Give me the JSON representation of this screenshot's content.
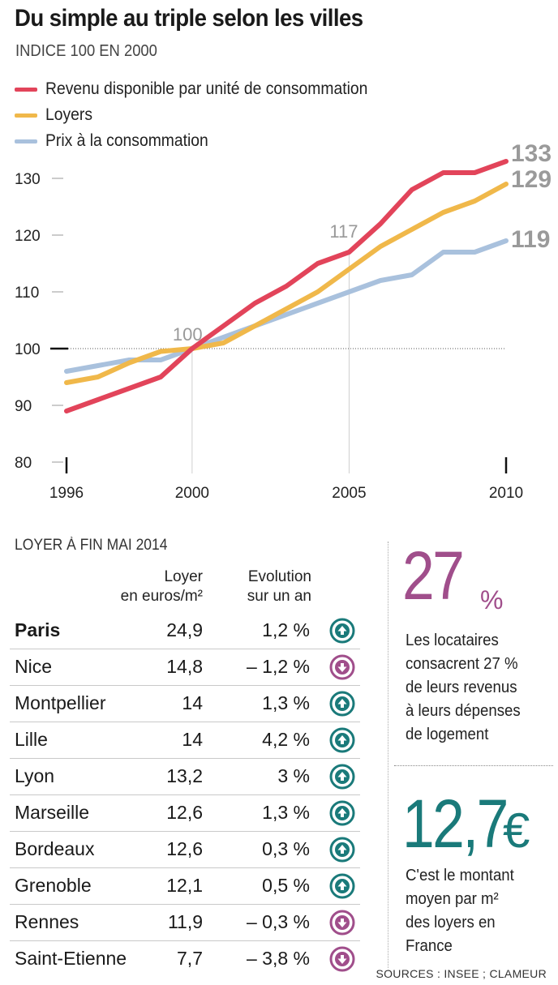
{
  "header": {
    "title": "Du simple au triple selon les villes",
    "subtitle": "INDICE 100 EN 2000"
  },
  "legend": [
    {
      "label": "Revenu disponible par unité de consommation",
      "color": "#e2445a"
    },
    {
      "label": "Loyers",
      "color": "#f0b84a"
    },
    {
      "label": "Prix à la consommation",
      "color": "#a9c1dd"
    }
  ],
  "chart_data": {
    "type": "line",
    "title": "Du simple au triple selon les villes",
    "subtitle": "INDICE 100 EN 2000",
    "xlabel": "",
    "ylabel": "",
    "x": [
      1996,
      1997,
      1998,
      1999,
      2000,
      2001,
      2002,
      2003,
      2004,
      2005,
      2006,
      2007,
      2008,
      2009,
      2010
    ],
    "xlim": [
      1996,
      2010
    ],
    "ylim": [
      80,
      130
    ],
    "yticks": [
      "80",
      "90",
      "100",
      "110",
      "120",
      "130"
    ],
    "xticks": [
      "1996",
      "2000",
      "2005",
      "2010"
    ],
    "grid": false,
    "reference_line": 100,
    "series": [
      {
        "name": "Revenu disponible par unité de consommation",
        "color": "#e2445a",
        "values": [
          89,
          91,
          93,
          95,
          100,
          104,
          108,
          111,
          115,
          117,
          122,
          128,
          131,
          131,
          133
        ]
      },
      {
        "name": "Loyers",
        "color": "#f0b84a",
        "values": [
          94,
          95,
          97.5,
          99.5,
          100,
          101,
          104,
          107,
          110,
          114,
          118,
          121,
          124,
          126,
          129
        ]
      },
      {
        "name": "Prix à la consommation",
        "color": "#a9c1dd",
        "values": [
          96,
          97,
          98,
          98,
          100,
          102,
          104,
          106,
          108,
          110,
          112,
          113,
          117,
          117,
          119
        ]
      }
    ],
    "annotations": [
      {
        "x": 2000,
        "y": 100,
        "text": "100"
      },
      {
        "x": 2005,
        "y": 117,
        "text": "117"
      }
    ],
    "end_labels": [
      "133",
      "129",
      "119"
    ]
  },
  "table": {
    "title": "LOYER À FIN MAI 2014",
    "col_rent": [
      "Loyer",
      "en euros/m²"
    ],
    "col_evolution": [
      "Evolution",
      "sur un an"
    ],
    "rows": [
      {
        "city": "Paris",
        "rent": "24,9",
        "evolution": "1,2 %",
        "direction": "up"
      },
      {
        "city": "Nice",
        "rent": "14,8",
        "evolution": "– 1,2 %",
        "direction": "down"
      },
      {
        "city": "Montpellier",
        "rent": "14",
        "evolution": "1,3 %",
        "direction": "up"
      },
      {
        "city": "Lille",
        "rent": "14",
        "evolution": "4,2 %",
        "direction": "up"
      },
      {
        "city": "Lyon",
        "rent": "13,2",
        "evolution": "3 %",
        "direction": "up"
      },
      {
        "city": "Marseille",
        "rent": "12,6",
        "evolution": "1,3 %",
        "direction": "up"
      },
      {
        "city": "Bordeaux",
        "rent": "12,6",
        "evolution": "0,3 %",
        "direction": "up"
      },
      {
        "city": "Grenoble",
        "rent": "12,1",
        "evolution": "0,5 %",
        "direction": "up"
      },
      {
        "city": "Rennes",
        "rent": "11,9",
        "evolution": "– 0,3 %",
        "direction": "down"
      },
      {
        "city": "Saint-Etienne",
        "rent": "7,7",
        "evolution": "– 3,8 %",
        "direction": "down"
      }
    ]
  },
  "stat1": {
    "value": "27",
    "unit": "%",
    "lines": [
      "Les locataires",
      "consacrent 27 %",
      "de leurs revenus",
      "à leurs dépenses",
      "de logement"
    ]
  },
  "stat2": {
    "value": "12,7",
    "unit": "€",
    "lines": [
      "C'est le montant",
      "moyen par m²",
      "des loyers en",
      "France"
    ]
  },
  "sources": "SOURCES : INSEE ; CLAMEUR",
  "colors": {
    "up": "#1a7a7a",
    "down": "#a04e8b"
  }
}
